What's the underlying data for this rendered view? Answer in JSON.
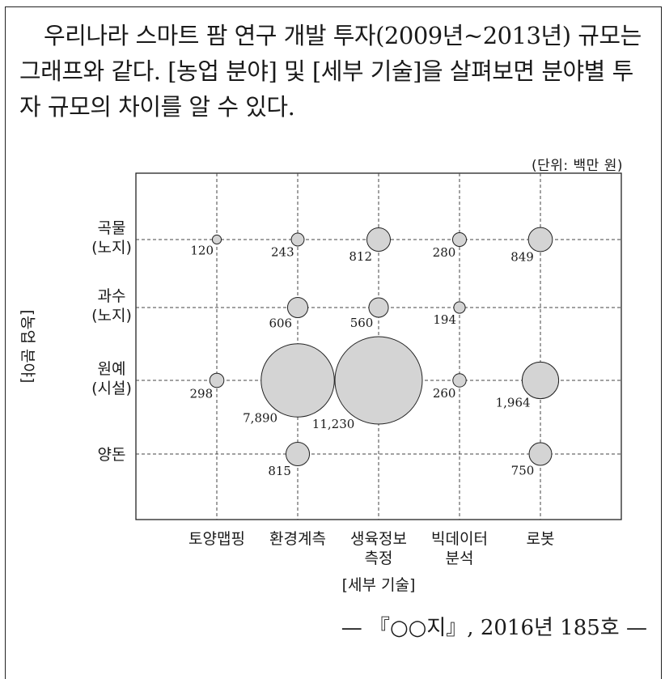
{
  "intro": {
    "text": "우리나라 스마트 팜 연구 개발 투자(2009년~2013년) 규모는 그래프와 같다. [농업 분야] 및 [세부 기술]을 살펴보면 분야별 투자 규모의 차이를 알 수 있다."
  },
  "unit": "(단위: 백만 원)",
  "source": "— 『○○지』, 2016년 185호 —",
  "chart_data": {
    "type": "scatter",
    "subtype": "bubble",
    "xlabel": "[세부 기술]",
    "ylabel": "[농업 분야]",
    "x_categories": [
      "토양맵핑",
      "환경계측",
      "생육정보 측정",
      "빅데이터 분석",
      "로봇"
    ],
    "y_categories": [
      "곡물 (노지)",
      "과수 (노지)",
      "원예 (시설)",
      "양돈"
    ],
    "grid": true,
    "points": [
      {
        "x": "토양맵핑",
        "y": "곡물 (노지)",
        "value": 120,
        "label": "120"
      },
      {
        "x": "환경계측",
        "y": "곡물 (노지)",
        "value": 243,
        "label": "243"
      },
      {
        "x": "생육정보 측정",
        "y": "곡물 (노지)",
        "value": 812,
        "label": "812"
      },
      {
        "x": "빅데이터 분석",
        "y": "곡물 (노지)",
        "value": 280,
        "label": "280"
      },
      {
        "x": "로봇",
        "y": "곡물 (노지)",
        "value": 849,
        "label": "849"
      },
      {
        "x": "환경계측",
        "y": "과수 (노지)",
        "value": 606,
        "label": "606"
      },
      {
        "x": "생육정보 측정",
        "y": "과수 (노지)",
        "value": 560,
        "label": "560"
      },
      {
        "x": "빅데이터 분석",
        "y": "과수 (노지)",
        "value": 194,
        "label": "194"
      },
      {
        "x": "토양맵핑",
        "y": "원예 (시설)",
        "value": 298,
        "label": "298"
      },
      {
        "x": "환경계측",
        "y": "원예 (시설)",
        "value": 7890,
        "label": "7,890"
      },
      {
        "x": "생육정보 측정",
        "y": "원예 (시설)",
        "value": 11230,
        "label": "11,230"
      },
      {
        "x": "빅데이터 분석",
        "y": "원예 (시설)",
        "value": 260,
        "label": "260"
      },
      {
        "x": "로봇",
        "y": "원예 (시설)",
        "value": 1964,
        "label": "1,964"
      },
      {
        "x": "환경계측",
        "y": "양돈",
        "value": 815,
        "label": "815"
      },
      {
        "x": "로봇",
        "y": "양돈",
        "value": 750,
        "label": "750"
      }
    ]
  }
}
